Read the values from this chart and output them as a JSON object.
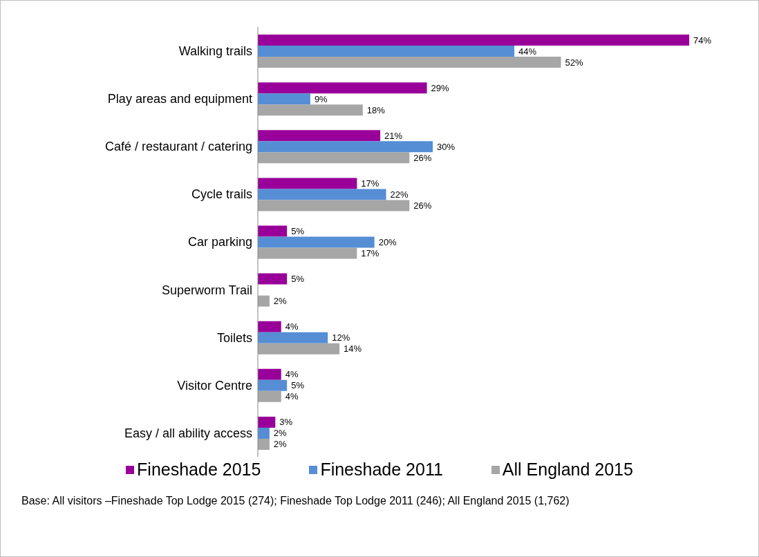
{
  "chart_data": {
    "type": "bar",
    "orientation": "horizontal",
    "categories": [
      "Walking trails",
      "Play areas and equipment",
      "Café / restaurant / catering",
      "Cycle trails",
      "Car parking",
      "Superworm Trail",
      "Toilets",
      "Visitor Centre",
      "Easy / all ability access"
    ],
    "series": [
      {
        "name": "Fineshade 2015",
        "color": "#990099",
        "values": [
          74,
          29,
          21,
          17,
          5,
          5,
          4,
          4,
          3
        ],
        "value_labels": [
          "74%",
          "29%",
          "21%",
          "17%",
          "5%",
          "5%",
          "4%",
          "4%",
          "3%"
        ]
      },
      {
        "name": "Fineshade 2011",
        "color": "#558ed5",
        "values": [
          44,
          9,
          30,
          22,
          20,
          null,
          12,
          5,
          2
        ],
        "value_labels": [
          "44%",
          "9%",
          "30%",
          "22%",
          "20%",
          null,
          "12%",
          "5%",
          "2%"
        ]
      },
      {
        "name": "All England 2015",
        "color": "#a6a6a6",
        "values": [
          52,
          18,
          26,
          26,
          17,
          2,
          14,
          4,
          2
        ],
        "value_labels": [
          "52%",
          "18%",
          "26%",
          "26%",
          "17%",
          "2%",
          "14%",
          "4%",
          "2%"
        ]
      }
    ],
    "legend": "bottom",
    "grid": false,
    "annotations": [
      "Base: All visitors –Fineshade Top Lodge 2015 (274); Fineshade Top Lodge 2011 (246); All England 2015 (1,762)"
    ]
  }
}
